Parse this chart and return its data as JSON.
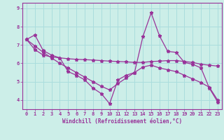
{
  "xlabel": "Windchill (Refroidissement éolien,°C)",
  "background_color": "#cceee8",
  "grid_color": "#aadddd",
  "line_color": "#993399",
  "xlim": [
    -0.5,
    23.5
  ],
  "ylim": [
    3.5,
    9.3
  ],
  "yticks": [
    4,
    5,
    6,
    7,
    8,
    9
  ],
  "xticks": [
    0,
    1,
    2,
    3,
    4,
    5,
    6,
    7,
    8,
    9,
    10,
    11,
    12,
    13,
    14,
    15,
    16,
    17,
    18,
    19,
    20,
    21,
    22,
    23
  ],
  "series1_x": [
    0,
    1,
    2,
    3,
    4,
    5,
    6,
    7,
    8,
    9,
    10,
    11,
    12,
    13,
    14,
    15,
    16,
    17,
    18,
    19,
    20,
    21,
    22,
    23
  ],
  "series1_y": [
    7.3,
    7.55,
    6.7,
    6.45,
    6.3,
    5.55,
    5.35,
    5.1,
    4.65,
    4.35,
    3.8,
    5.1,
    5.35,
    5.5,
    7.45,
    8.75,
    7.5,
    6.65,
    6.6,
    6.05,
    5.95,
    5.75,
    4.65,
    3.9
  ],
  "series2_x": [
    0,
    1,
    2,
    3,
    4,
    5,
    6,
    7,
    8,
    9,
    10,
    11,
    12,
    13,
    14,
    15,
    16,
    17,
    18,
    19,
    20,
    21,
    22,
    23
  ],
  "series2_y": [
    7.3,
    6.75,
    6.45,
    6.35,
    6.3,
    6.25,
    6.22,
    6.2,
    6.18,
    6.15,
    6.12,
    6.1,
    6.08,
    6.05,
    6.05,
    6.1,
    6.12,
    6.15,
    6.15,
    6.1,
    6.05,
    5.95,
    5.9,
    5.85
  ],
  "series3_x": [
    0,
    1,
    2,
    3,
    4,
    5,
    6,
    7,
    8,
    9,
    10,
    11,
    12,
    13,
    14,
    15,
    16,
    17,
    18,
    19,
    20,
    21,
    22,
    23
  ],
  "series3_y": [
    7.3,
    6.95,
    6.6,
    6.3,
    6.0,
    5.75,
    5.5,
    5.25,
    5.0,
    4.75,
    4.55,
    4.9,
    5.2,
    5.5,
    5.8,
    5.9,
    5.75,
    5.65,
    5.55,
    5.35,
    5.15,
    4.95,
    4.7,
    4.0
  ]
}
